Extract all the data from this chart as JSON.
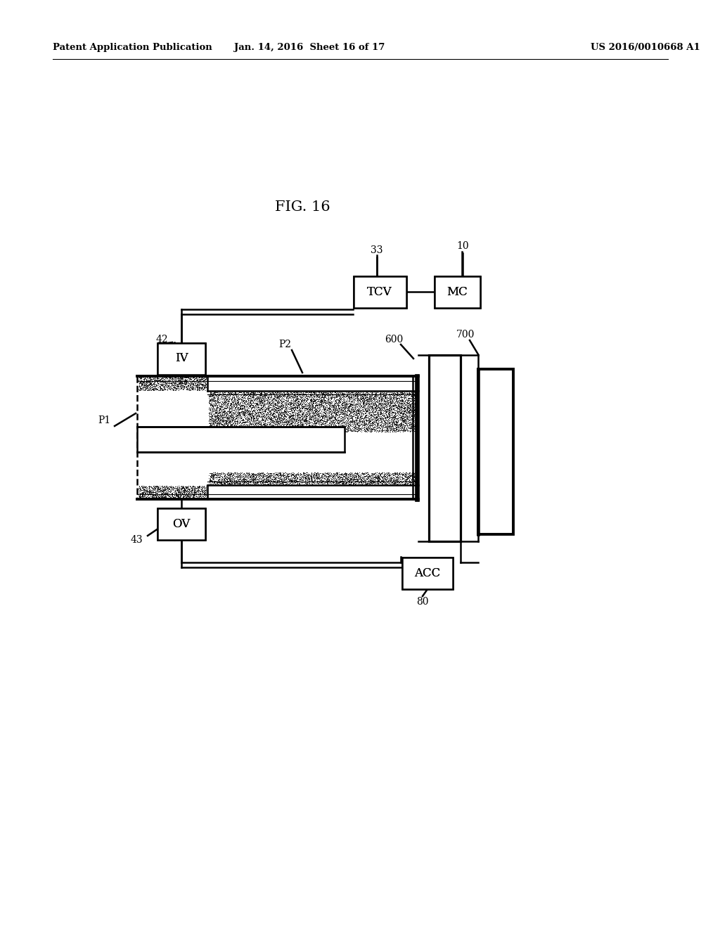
{
  "title": "FIG. 16",
  "header_left": "Patent Application Publication",
  "header_center": "Jan. 14, 2016  Sheet 16 of 17",
  "header_right": "US 2016/0010668 A1",
  "bg_color": "#ffffff",
  "line_color": "#000000"
}
